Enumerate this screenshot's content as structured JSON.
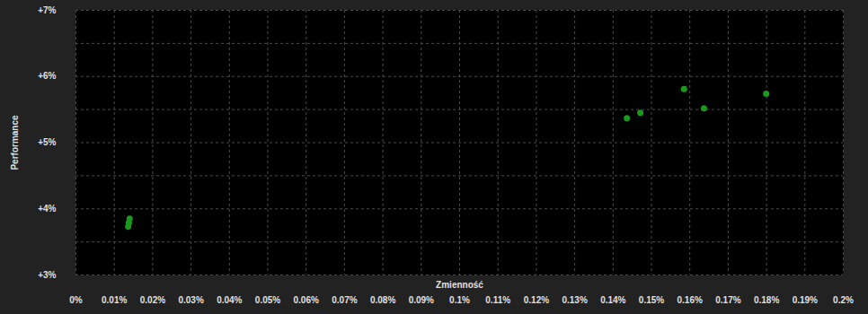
{
  "chart_data": {
    "type": "scatter",
    "x_label": "Zmienność",
    "y_label": "Performance",
    "x": [
      0.014,
      0.0138,
      0.0136,
      0.1436,
      0.1471,
      0.1585,
      0.1637,
      0.1799
    ],
    "values": [
      3.85,
      3.79,
      3.73,
      5.37,
      5.45,
      5.81,
      5.52,
      5.74
    ],
    "color": "#1a9a1a",
    "marker": "circle",
    "xlim": [
      0,
      0.2
    ],
    "xticks": [
      {
        "value": 0,
        "label": "0%"
      },
      {
        "value": 0.01,
        "label": "0.01%"
      },
      {
        "value": 0.02,
        "label": "0.02%"
      },
      {
        "value": 0.03,
        "label": "0.03%"
      },
      {
        "value": 0.04,
        "label": "0.04%"
      },
      {
        "value": 0.05,
        "label": "0.05%"
      },
      {
        "value": 0.06,
        "label": "0.06%"
      },
      {
        "value": 0.07,
        "label": "0.07%"
      },
      {
        "value": 0.08,
        "label": "0.08%"
      },
      {
        "value": 0.09,
        "label": "0.09%"
      },
      {
        "value": 0.1,
        "label": "0.1%"
      },
      {
        "value": 0.11,
        "label": "0.11%"
      },
      {
        "value": 0.12,
        "label": "0.12%"
      },
      {
        "value": 0.13,
        "label": "0.13%"
      },
      {
        "value": 0.14,
        "label": "0.14%"
      },
      {
        "value": 0.15,
        "label": "0.15%"
      },
      {
        "value": 0.16,
        "label": "0.16%"
      },
      {
        "value": 0.17,
        "label": "0.17%"
      },
      {
        "value": 0.18,
        "label": "0.18%"
      },
      {
        "value": 0.19,
        "label": "0.19%"
      },
      {
        "value": 0.2,
        "label": "0.2%"
      }
    ],
    "ylim": [
      3,
      7
    ],
    "yticks": [
      {
        "value": 3,
        "label": "+3%"
      },
      {
        "value": 4,
        "label": "+4%"
      },
      {
        "value": 5,
        "label": "+5%"
      },
      {
        "value": 6,
        "label": "+6%"
      },
      {
        "value": 7,
        "label": "+7%"
      }
    ],
    "grid": true
  }
}
